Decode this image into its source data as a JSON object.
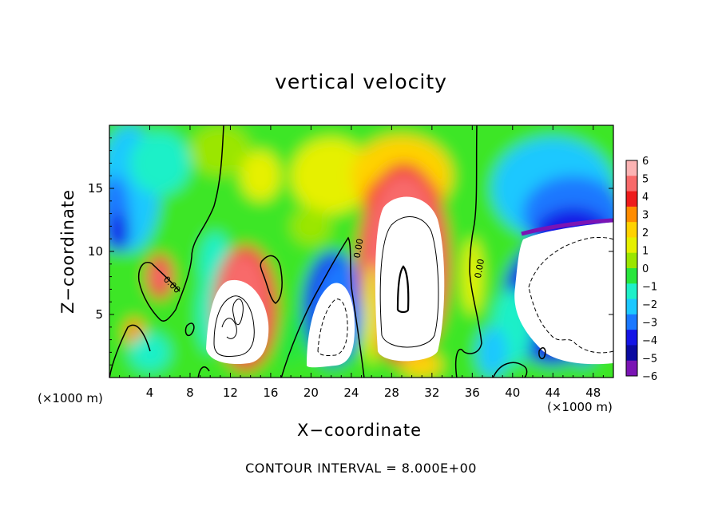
{
  "chart_data": {
    "type": "heatmap",
    "title": "vertical velocity",
    "xlabel": "X−coordinate",
    "ylabel": "Z−coordinate",
    "x_unit_label": "(×1000 m)",
    "annotation": "CONTOUR INTERVAL = 8.000E+00",
    "xlim": [
      0,
      50
    ],
    "ylim": [
      0,
      20
    ],
    "x_ticks": [
      4,
      8,
      12,
      16,
      20,
      24,
      28,
      32,
      36,
      40,
      44,
      48
    ],
    "y_ticks": [
      5,
      10,
      15
    ],
    "colorbar": {
      "range": [
        -6,
        6
      ],
      "ticks": [
        6,
        5,
        4,
        3,
        2,
        1,
        0,
        -1,
        -2,
        -3,
        -4,
        -5,
        -6
      ],
      "colors": [
        "#fbb3b3",
        "#f86a6a",
        "#ee1c1c",
        "#ff8c00",
        "#ffd200",
        "#e6f000",
        "#9be600",
        "#28e63c",
        "#1ef0c8",
        "#1cc8ff",
        "#1a78ff",
        "#1414e6",
        "#0a0aa0",
        "#7a14b4"
      ]
    },
    "features": [
      {
        "label": "0.00",
        "x": 6,
        "y": 7.2
      },
      {
        "label": "0.00",
        "x": 25,
        "y": 10.2
      },
      {
        "label": "0.00",
        "x": 37,
        "y": 8.6
      }
    ]
  }
}
